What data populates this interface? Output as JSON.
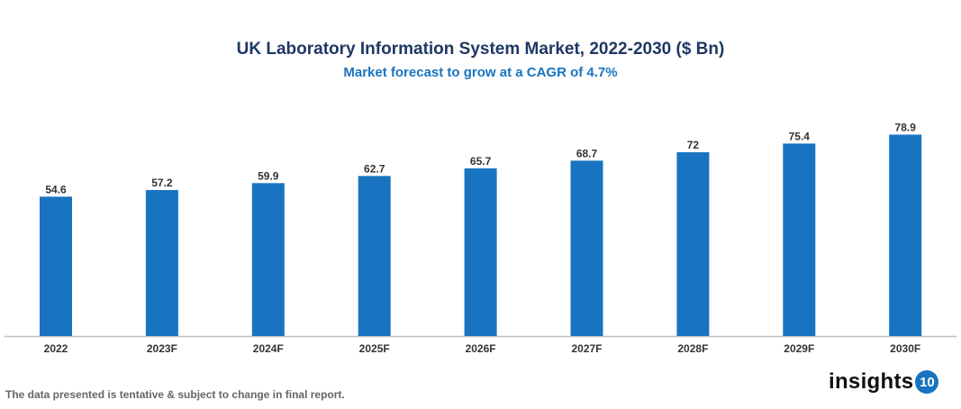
{
  "chart_data": {
    "type": "bar",
    "title": "UK Laboratory Information System Market, 2022-2030 ($ Bn)",
    "subtitle": "Market forecast to grow at a CAGR of 4.7%",
    "categories": [
      "2022",
      "2023F",
      "2024F",
      "2025F",
      "2026F",
      "2027F",
      "2028F",
      "2029F",
      "2030F"
    ],
    "values": [
      54.6,
      57.2,
      59.9,
      62.7,
      65.7,
      68.7,
      72,
      75.4,
      78.9
    ],
    "value_labels": [
      "54.6",
      "57.2",
      "59.9",
      "62.7",
      "65.7",
      "68.7",
      "72",
      "75.4",
      "78.9"
    ],
    "xlabel": "",
    "ylabel": "",
    "ylim": [
      0,
      90
    ],
    "grid": false,
    "bar_color": "#1874c1"
  },
  "footer": {
    "note": "The data presented is tentative & subject to change in final report.",
    "logo_text": "insights",
    "logo_badge": "10"
  }
}
